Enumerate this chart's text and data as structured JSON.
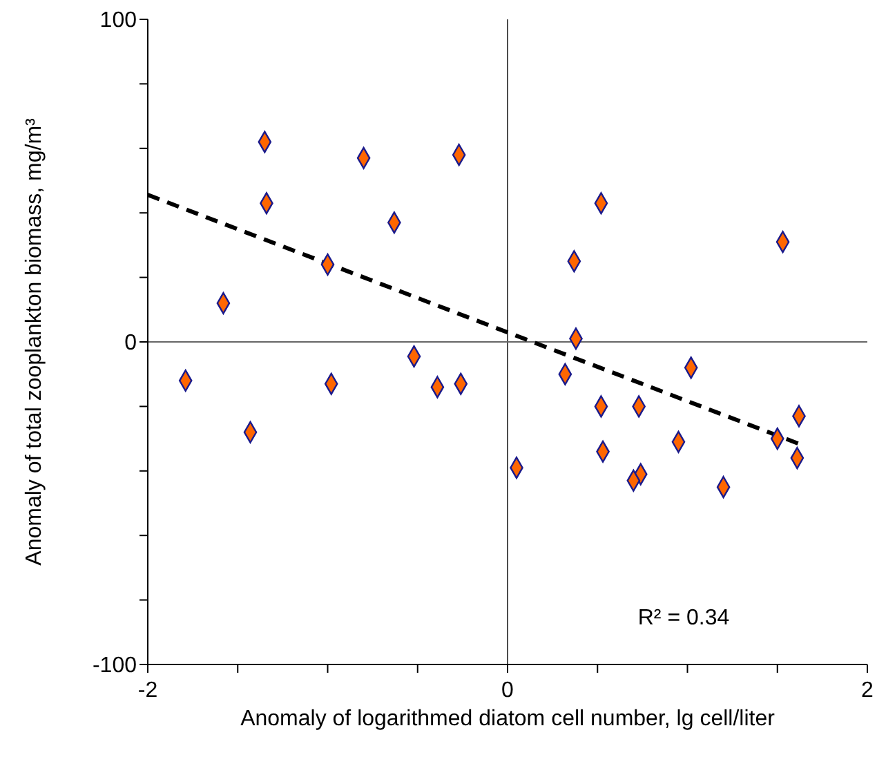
{
  "chart_data": {
    "type": "scatter",
    "xlabel": "Anomaly of logarithmed diatom cell number, lg cell/liter",
    "ylabel": "Anomaly of total zooplankton biomass, mg/m³",
    "xlim": [
      -2,
      2
    ],
    "xticks": [
      -2,
      {
        "value": -1.5,
        "label": null
      },
      {
        "value": -1,
        "label": null
      },
      {
        "value": -0.5,
        "label": null
      },
      0,
      {
        "value": 0.5,
        "label": null
      },
      {
        "value": 1,
        "label": null
      },
      {
        "value": 1.5,
        "label": null
      },
      2
    ],
    "ylim": [
      -100,
      100
    ],
    "yticks": [
      -100,
      {
        "value": -80,
        "label": null
      },
      {
        "value": -60,
        "label": null
      },
      {
        "value": -40,
        "label": null
      },
      {
        "value": -20,
        "label": null
      },
      0,
      {
        "value": 20,
        "label": null
      },
      {
        "value": 40,
        "label": null
      },
      {
        "value": 60,
        "label": null
      },
      {
        "value": 80,
        "label": null
      },
      100
    ],
    "marker": "diamond",
    "ref_lines": [
      {
        "axis": "x",
        "value": 0,
        "color": "#4d4d4d"
      },
      {
        "axis": "y",
        "value": 0,
        "color": "#666666"
      }
    ],
    "annotations": [
      "R² = 0.34"
    ],
    "series": [
      {
        "color": "#ff6600",
        "x": [
          -1.79,
          -1.58,
          -1.43,
          -1.35,
          -1.34,
          -1.0,
          -0.98,
          -0.8,
          -0.63,
          -0.52,
          -0.39,
          -0.27,
          -0.26,
          0.05,
          0.32,
          0.37,
          0.38,
          0.52,
          0.52,
          0.53,
          0.73,
          0.74,
          0.7,
          0.95,
          1.02,
          1.2,
          1.5,
          1.53,
          1.62,
          1.61
        ],
        "values": [
          -12,
          12,
          -28,
          62,
          43,
          24,
          -13,
          57,
          37,
          -4.5,
          -14,
          58,
          -13,
          -39,
          -10,
          25,
          1,
          -20,
          43,
          -34,
          -20,
          -41,
          -43,
          -31,
          -8,
          -45,
          -30,
          31,
          -23,
          -36
        ]
      },
      {
        "type": "line",
        "color": "#000000",
        "line_style": "dashed",
        "marker": "none",
        "x": [
          -2,
          1.63
        ],
        "values": [
          45.6,
          -31.8
        ]
      }
    ]
  }
}
